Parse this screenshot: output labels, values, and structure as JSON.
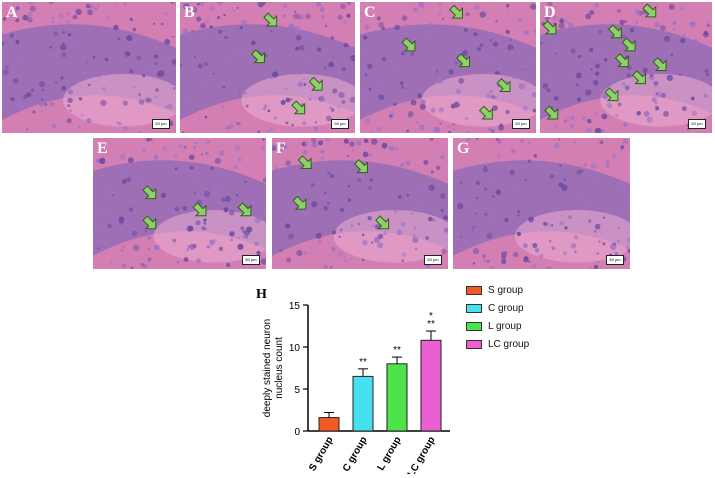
{
  "panels": [
    {
      "label": "A",
      "arrows": []
    },
    {
      "label": "B",
      "arrows": [
        [
          0.52,
          0.14
        ],
        [
          0.45,
          0.42
        ],
        [
          0.78,
          0.63
        ],
        [
          0.68,
          0.81
        ]
      ]
    },
    {
      "label": "C",
      "arrows": [
        [
          0.55,
          0.08
        ],
        [
          0.28,
          0.33
        ],
        [
          0.59,
          0.45
        ],
        [
          0.72,
          0.85
        ],
        [
          0.82,
          0.64
        ]
      ]
    },
    {
      "label": "D",
      "arrows": [
        [
          0.64,
          0.07
        ],
        [
          0.06,
          0.2
        ],
        [
          0.44,
          0.23
        ],
        [
          0.52,
          0.33
        ],
        [
          0.48,
          0.45
        ],
        [
          0.7,
          0.48
        ],
        [
          0.58,
          0.58
        ],
        [
          0.42,
          0.71
        ],
        [
          0.07,
          0.85
        ]
      ]
    },
    {
      "label": "E",
      "arrows": [
        [
          0.33,
          0.42
        ],
        [
          0.62,
          0.55
        ],
        [
          0.88,
          0.55
        ],
        [
          0.33,
          0.65
        ]
      ]
    },
    {
      "label": "F",
      "arrows": [
        [
          0.19,
          0.19
        ],
        [
          0.51,
          0.22
        ],
        [
          0.16,
          0.5
        ],
        [
          0.63,
          0.65
        ]
      ]
    },
    {
      "label": "G",
      "arrows": []
    }
  ],
  "scale_bar_text": "50 μm",
  "chart_label": "H",
  "colors": {
    "tissue_pink": "#d47fb4",
    "nucleus_purple": "#6b4a9e",
    "arrow_fill": "#8fd06a",
    "arrow_edge": "#2f5d1a"
  },
  "chart_data": {
    "type": "bar",
    "categories": [
      "S group",
      "C group",
      "L group",
      "LC group"
    ],
    "values": [
      1.6,
      6.5,
      8.0,
      10.8
    ],
    "errors": [
      0.6,
      0.9,
      0.8,
      1.1
    ],
    "annotations": [
      "",
      "**",
      "**",
      "*\n**"
    ],
    "colors": [
      "#f15a24",
      "#46e0f0",
      "#4fe34a",
      "#ec5fd3"
    ],
    "ylabel": "deeply stained neuron nucleus count",
    "ylim": [
      0,
      15
    ],
    "yticks": [
      0,
      5,
      10,
      15
    ],
    "legend": [
      {
        "name": "S group",
        "color": "#f15a24"
      },
      {
        "name": "C group",
        "color": "#46e0f0"
      },
      {
        "name": "L group",
        "color": "#4fe34a"
      },
      {
        "name": "LC group",
        "color": "#ec5fd3"
      }
    ],
    "legend_position": "right"
  }
}
